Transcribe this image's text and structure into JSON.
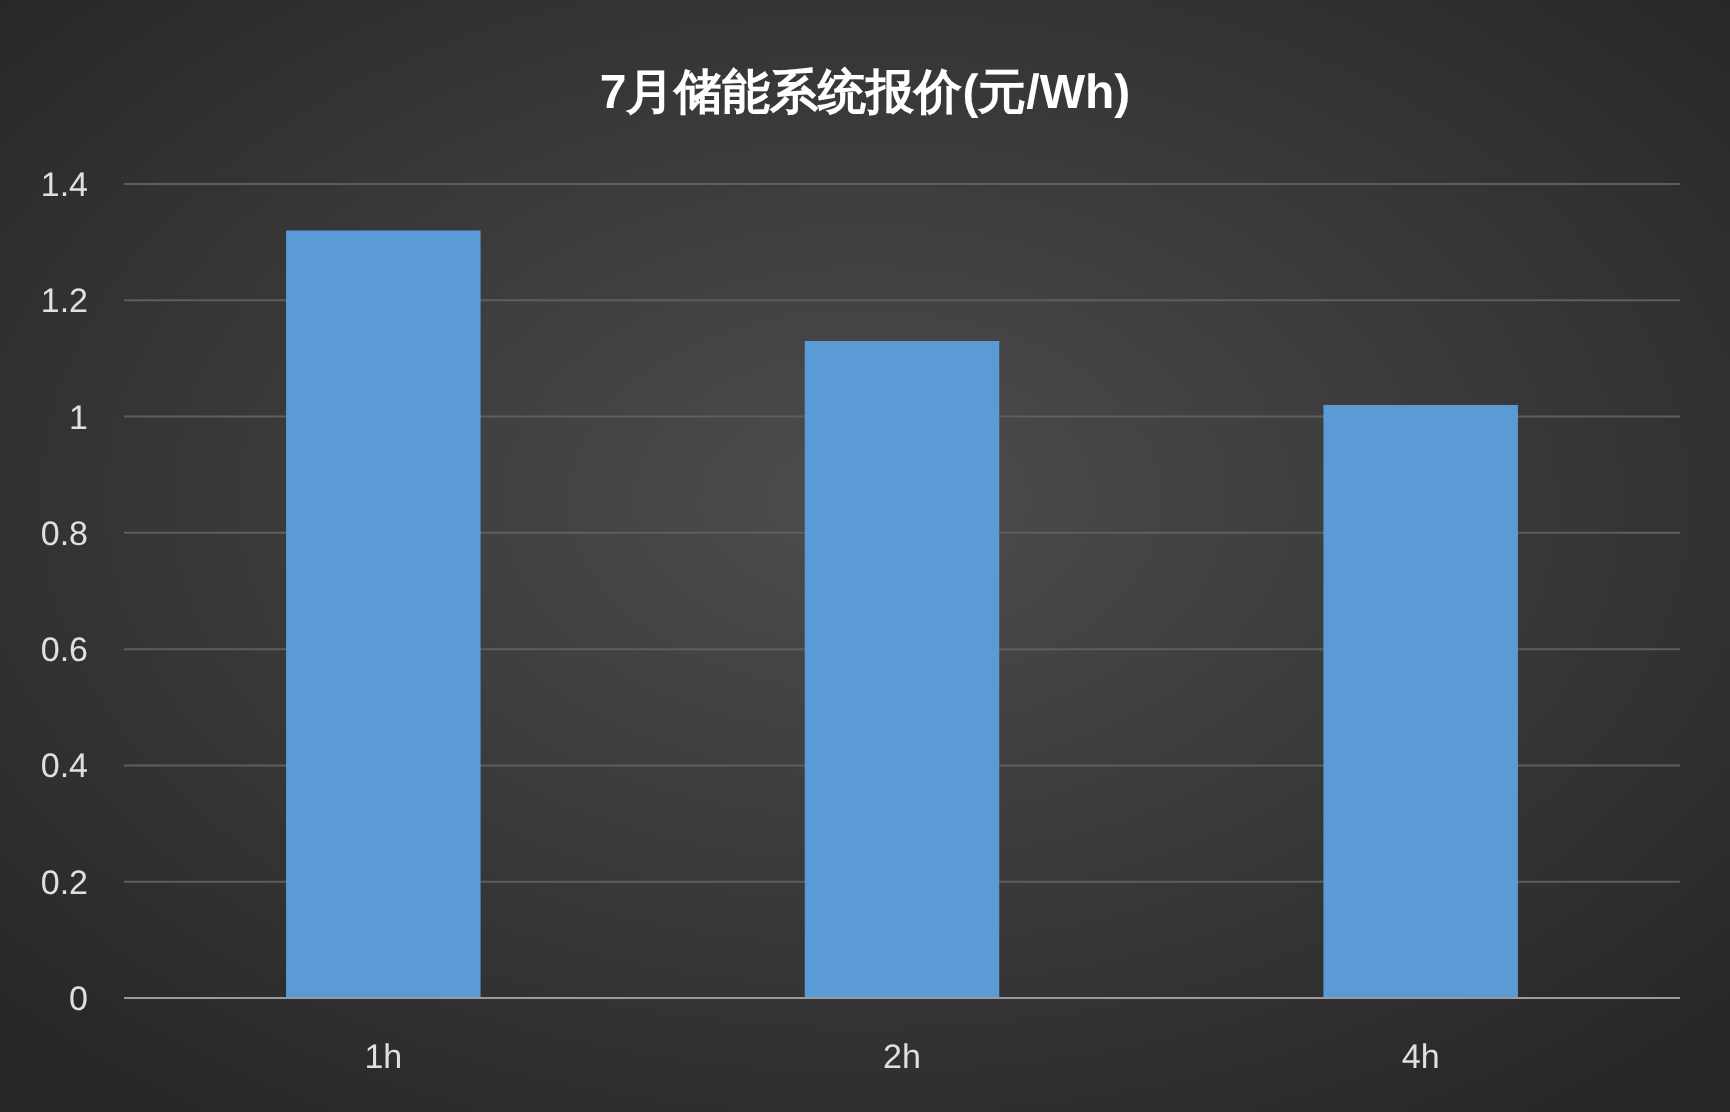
{
  "chart_data": {
    "type": "bar",
    "title": "7月储能系统报价(元/Wh)",
    "categories": [
      "1h",
      "2h",
      "4h"
    ],
    "values": [
      1.32,
      1.13,
      1.02
    ],
    "color": "#5b9bd5",
    "ylim": [
      0,
      1.4
    ],
    "yticks": [
      0,
      0.2,
      0.4,
      0.6,
      0.8,
      1,
      1.2,
      1.4
    ],
    "grid": "y"
  }
}
